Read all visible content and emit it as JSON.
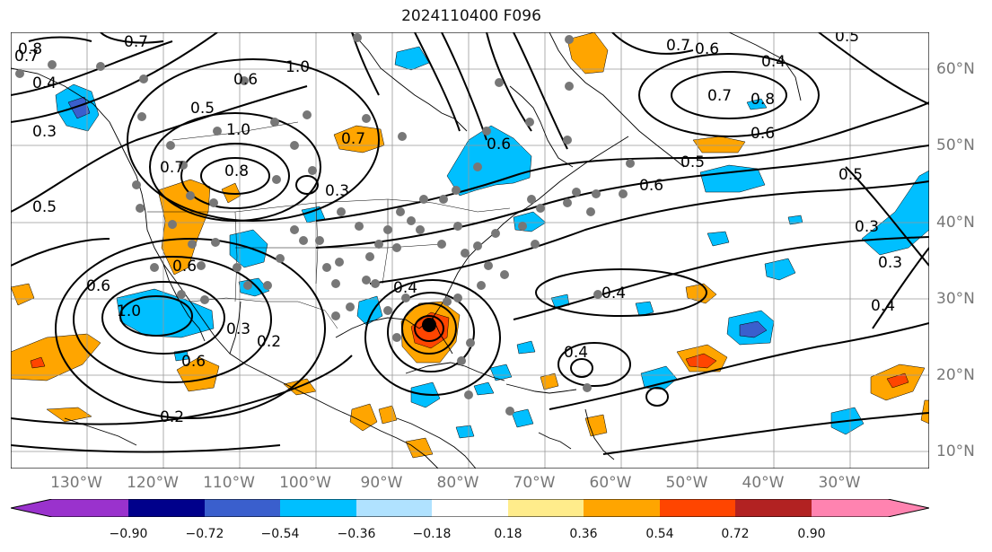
{
  "title": "2024110400 F096",
  "lon_labels": [
    "130°W",
    "120°W",
    "110°W",
    "100°W",
    "90°W",
    "80°W",
    "70°W",
    "60°W",
    "50°W",
    "40°W",
    "30°W"
  ],
  "lat_labels": [
    "60°N",
    "50°N",
    "40°N",
    "30°N",
    "20°N",
    "10°N"
  ],
  "colorbar": {
    "tick_labels": [
      "−0.90",
      "−0.72",
      "−0.54",
      "−0.36",
      "−0.18",
      "0.18",
      "0.36",
      "0.54",
      "0.72",
      "0.90"
    ],
    "colors": [
      "#9a32cd",
      "#00008b",
      "#3a5fcd",
      "#00bfff",
      "#b0e2ff",
      "#ffffff",
      "#ffec8b",
      "#ffa500",
      "#ff4500",
      "#b22222",
      "#ff83b0"
    ]
  },
  "contour_labels": [
    "0.8",
    "0.7",
    "0.7",
    "0.4",
    "0.3",
    "0.5",
    "0.7",
    "0.5",
    "1.0",
    "0.6",
    "1.0",
    "0.8",
    "1.0",
    "0.7",
    "0.3",
    "0.6",
    "0.3",
    "0.6",
    "0.2",
    "0.6",
    "0.2",
    "0.4",
    "0.4",
    "0.7",
    "0.6",
    "0.7",
    "0.8",
    "0.6",
    "0.5",
    "0.4",
    "0.6",
    "0.5",
    "0.5",
    "0.3",
    "0.3",
    "0.4",
    "0.4",
    "0.6"
  ],
  "fill_colors": {
    "negative": "#00bfff",
    "negative_deep": "#3a5fcd",
    "positive": "#ffa500",
    "positive_strong": "#ff4500",
    "positive_core": "#b22222"
  }
}
